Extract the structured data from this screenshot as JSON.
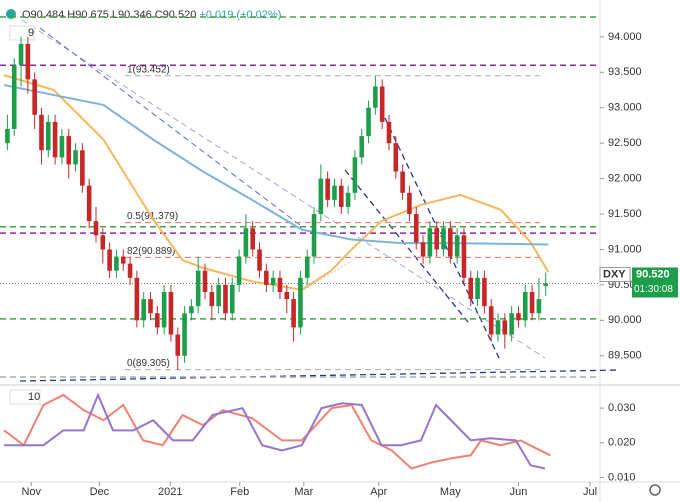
{
  "chart_data": {
    "type": "candlestick",
    "symbol": "DXY",
    "header": [
      "O90.484",
      "H90.675",
      "L90.346",
      "C90.520",
      "+0.019 (+0.02%)"
    ],
    "ma_label": "9",
    "last_price": {
      "value": 90.52,
      "label": "90.520"
    },
    "countdown": "01:30:08",
    "xlim": [
      0,
      86
    ],
    "xticks": [
      {
        "value": 4,
        "label": "Nov"
      },
      {
        "value": 14,
        "label": "Dec"
      },
      {
        "value": 24.4,
        "label": "2021"
      },
      {
        "value": 34.6,
        "label": "Feb"
      },
      {
        "value": 44,
        "label": "Mar"
      },
      {
        "value": 55,
        "label": "Apr"
      },
      {
        "value": 65.5,
        "label": "May"
      },
      {
        "value": 75.5,
        "label": "Jun"
      },
      {
        "value": 86,
        "label": "Jul"
      }
    ],
    "ylim": [
      89.13,
      94.52
    ],
    "yticks": [
      {
        "value": 94,
        "label": "94.000"
      },
      {
        "value": 93.5,
        "label": "93.500"
      },
      {
        "value": 93,
        "label": "93.000"
      },
      {
        "value": 92.5,
        "label": "92.500"
      },
      {
        "value": 92,
        "label": "92.000"
      },
      {
        "value": 91.5,
        "label": "91.500"
      },
      {
        "value": 91,
        "label": "91.000"
      },
      {
        "value": 90.5,
        "label": "90.500"
      },
      {
        "value": 90,
        "label": "90.000"
      },
      {
        "value": 89.5,
        "label": "89.500"
      }
    ],
    "up_color": "#1e9e4a",
    "down_color": "#c62828",
    "ohlc": [
      [
        92.5,
        92.9,
        92.4,
        92.7
      ],
      [
        92.7,
        93.7,
        92.6,
        93.6
      ],
      [
        93.6,
        94.0,
        93.3,
        93.9
      ],
      [
        93.9,
        94.0,
        93.2,
        93.4
      ],
      [
        93.4,
        93.5,
        92.7,
        92.9
      ],
      [
        92.9,
        93.0,
        92.2,
        92.4
      ],
      [
        92.4,
        92.9,
        92.3,
        92.8
      ],
      [
        92.8,
        92.9,
        92.2,
        92.3
      ],
      [
        92.3,
        92.7,
        92.2,
        92.6
      ],
      [
        92.6,
        92.7,
        92.0,
        92.2
      ],
      [
        92.2,
        92.5,
        92.1,
        92.4
      ],
      [
        92.4,
        92.5,
        91.8,
        91.9
      ],
      [
        91.9,
        92.0,
        91.3,
        91.4
      ],
      [
        91.4,
        91.6,
        91.1,
        91.2
      ],
      [
        91.2,
        91.3,
        90.8,
        91.0
      ],
      [
        91.0,
        91.1,
        90.6,
        90.7
      ],
      [
        90.7,
        91.0,
        90.6,
        90.9
      ],
      [
        90.9,
        91.0,
        90.7,
        90.8
      ],
      [
        90.8,
        90.9,
        90.5,
        90.6
      ],
      [
        90.6,
        90.7,
        89.9,
        90.0
      ],
      [
        90.0,
        90.4,
        89.9,
        90.3
      ],
      [
        90.3,
        90.4,
        90.0,
        90.1
      ],
      [
        90.1,
        90.2,
        89.8,
        89.9
      ],
      [
        89.9,
        90.5,
        89.8,
        90.4
      ],
      [
        90.4,
        90.5,
        89.7,
        89.8
      ],
      [
        89.8,
        89.9,
        89.3,
        89.5
      ],
      [
        89.5,
        90.2,
        89.4,
        90.1
      ],
      [
        90.1,
        90.3,
        90.0,
        90.2
      ],
      [
        90.2,
        90.9,
        90.1,
        90.7
      ],
      [
        90.7,
        90.8,
        90.3,
        90.4
      ],
      [
        90.4,
        90.5,
        90.0,
        90.2
      ],
      [
        90.2,
        90.6,
        90.1,
        90.5
      ],
      [
        90.5,
        90.6,
        90.0,
        90.1
      ],
      [
        90.1,
        90.6,
        90.0,
        90.5
      ],
      [
        90.5,
        91.0,
        90.4,
        90.9
      ],
      [
        90.9,
        91.5,
        90.8,
        91.3
      ],
      [
        91.3,
        91.4,
        90.9,
        91.0
      ],
      [
        91.0,
        91.1,
        90.6,
        90.7
      ],
      [
        90.7,
        90.8,
        90.4,
        90.5
      ],
      [
        90.5,
        90.7,
        90.4,
        90.6
      ],
      [
        90.6,
        90.7,
        90.3,
        90.4
      ],
      [
        90.4,
        90.5,
        90.1,
        90.3
      ],
      [
        90.3,
        90.4,
        89.7,
        89.9
      ],
      [
        89.9,
        90.7,
        89.8,
        90.6
      ],
      [
        90.6,
        91.0,
        90.5,
        90.9
      ],
      [
        90.9,
        91.6,
        90.8,
        91.5
      ],
      [
        91.5,
        92.2,
        91.4,
        92.0
      ],
      [
        92.0,
        92.1,
        91.6,
        91.7
      ],
      [
        91.7,
        92.0,
        91.6,
        91.9
      ],
      [
        91.9,
        92.0,
        91.5,
        91.6
      ],
      [
        91.6,
        91.9,
        91.5,
        91.8
      ],
      [
        91.8,
        92.4,
        91.7,
        92.3
      ],
      [
        92.3,
        92.7,
        92.2,
        92.6
      ],
      [
        92.6,
        93.1,
        92.5,
        93.0
      ],
      [
        93.0,
        93.45,
        92.9,
        93.3
      ],
      [
        93.3,
        93.4,
        92.7,
        92.8
      ],
      [
        92.8,
        92.9,
        92.4,
        92.5
      ],
      [
        92.5,
        92.6,
        92.0,
        92.1
      ],
      [
        92.1,
        92.2,
        91.7,
        91.8
      ],
      [
        91.8,
        91.9,
        91.4,
        91.5
      ],
      [
        91.5,
        91.6,
        91.0,
        91.1
      ],
      [
        91.1,
        91.2,
        90.8,
        90.9
      ],
      [
        90.9,
        91.4,
        90.8,
        91.3
      ],
      [
        91.3,
        91.4,
        90.9,
        91.0
      ],
      [
        91.0,
        91.4,
        90.9,
        91.3
      ],
      [
        91.3,
        91.4,
        90.8,
        90.9
      ],
      [
        90.9,
        91.3,
        90.8,
        91.2
      ],
      [
        91.2,
        91.3,
        90.5,
        90.6
      ],
      [
        90.6,
        90.7,
        90.2,
        90.3
      ],
      [
        90.3,
        90.7,
        90.2,
        90.6
      ],
      [
        90.6,
        90.7,
        90.1,
        90.2
      ],
      [
        90.2,
        90.3,
        89.7,
        89.8
      ],
      [
        89.8,
        90.1,
        89.7,
        90.0
      ],
      [
        90.0,
        90.1,
        89.6,
        89.8
      ],
      [
        89.8,
        90.2,
        89.7,
        90.1
      ],
      [
        90.1,
        90.2,
        89.9,
        90.0
      ],
      [
        90.0,
        90.5,
        89.9,
        90.4
      ],
      [
        90.4,
        90.5,
        90.0,
        90.1
      ],
      [
        90.1,
        90.6,
        90.0,
        90.3
      ],
      [
        90.484,
        90.675,
        90.346,
        90.52
      ]
    ],
    "series": [
      {
        "color": "#f5b85c",
        "x": [
          0,
          7.3,
          14.6,
          21.9,
          26.2,
          29.2,
          36.4,
          43.7,
          48,
          51,
          55.4,
          61.2,
          67,
          72.9,
          77.3,
          79.9
        ],
        "values": [
          93.46,
          93.25,
          92.55,
          91.42,
          90.85,
          90.74,
          90.55,
          90.43,
          90.7,
          91.0,
          91.4,
          91.63,
          91.77,
          91.56,
          91.1,
          90.68
        ]
      },
      {
        "color": "#7fb2dd",
        "x": [
          0,
          14.6,
          21.9,
          29.2,
          36.4,
          43.7,
          51,
          58.3,
          65.6,
          79.9
        ],
        "values": [
          93.32,
          93.04,
          92.55,
          92.1,
          91.7,
          91.28,
          91.14,
          91.09,
          91.09,
          91.07
        ]
      }
    ],
    "levels": [
      {
        "value": 94.28,
        "color": "#43a047"
      },
      {
        "value": 93.6,
        "color": "#8e24aa"
      },
      {
        "value": 93.452,
        "color": "#aaaaaa",
        "label": "1(93.452)"
      },
      {
        "value": 91.379,
        "color": "#e57373",
        "label": "0.5(91.379)"
      },
      {
        "value": 91.32,
        "color": "#43a047"
      },
      {
        "value": 91.23,
        "color": "#8e24aa"
      },
      {
        "value": 90.889,
        "color": "#e57373",
        "label": "82(90.889)"
      },
      {
        "value": 90.02,
        "color": "#43a047"
      },
      {
        "value": 89.305,
        "color": "#aaaaaa",
        "label": "0(89.305)"
      },
      {
        "value": 89.2,
        "color": "#aaaaaa"
      }
    ],
    "indicator": {
      "label": "10",
      "ylim": [
        0.0087,
        0.0358
      ],
      "yticks": [
        {
          "value": 0.03,
          "label": "0.030"
        },
        {
          "value": 0.02,
          "label": "0.020"
        },
        {
          "value": 0.01,
          "label": "0.010"
        }
      ],
      "series": [
        {
          "color": "#f08070",
          "x": [
            0,
            2.9,
            5.8,
            8.7,
            11.7,
            14.6,
            17.5,
            20.4,
            23.3,
            26.2,
            29.2,
            32.1,
            36.4,
            40.8,
            43.7,
            48.1,
            51,
            53.9,
            56.9,
            59.8,
            62.7,
            65.6,
            68.5,
            70,
            72.9,
            75.8,
            78.7,
            80.2
          ],
          "values": [
            0.0236,
            0.0193,
            0.0309,
            0.0338,
            0.0294,
            0.0265,
            0.0309,
            0.0207,
            0.0193,
            0.028,
            0.0251,
            0.0294,
            0.0271,
            0.0207,
            0.0207,
            0.03,
            0.0309,
            0.0207,
            0.0178,
            0.0126,
            0.0143,
            0.0155,
            0.0164,
            0.0207,
            0.0193,
            0.0207,
            0.0178,
            0.0164
          ]
        },
        {
          "color": "#9575cd",
          "x": [
            0,
            2.9,
            5.8,
            8.7,
            11.7,
            13.8,
            16,
            19,
            21.9,
            24.8,
            27.7,
            30.6,
            35,
            37.9,
            40.8,
            43.7,
            46.6,
            49.6,
            52.5,
            55.4,
            58.3,
            61.2,
            63.4,
            65.6,
            68.5,
            71.4,
            75.1,
            77.3,
            79.4
          ],
          "values": [
            0.0193,
            0.0193,
            0.0193,
            0.0236,
            0.0236,
            0.0338,
            0.0236,
            0.0236,
            0.0265,
            0.0207,
            0.0207,
            0.028,
            0.03,
            0.0193,
            0.0178,
            0.0193,
            0.03,
            0.0314,
            0.0309,
            0.0193,
            0.0193,
            0.0207,
            0.0309,
            0.0265,
            0.0207,
            0.0213,
            0.0207,
            0.0135,
            0.0126
          ]
        }
      ]
    }
  }
}
